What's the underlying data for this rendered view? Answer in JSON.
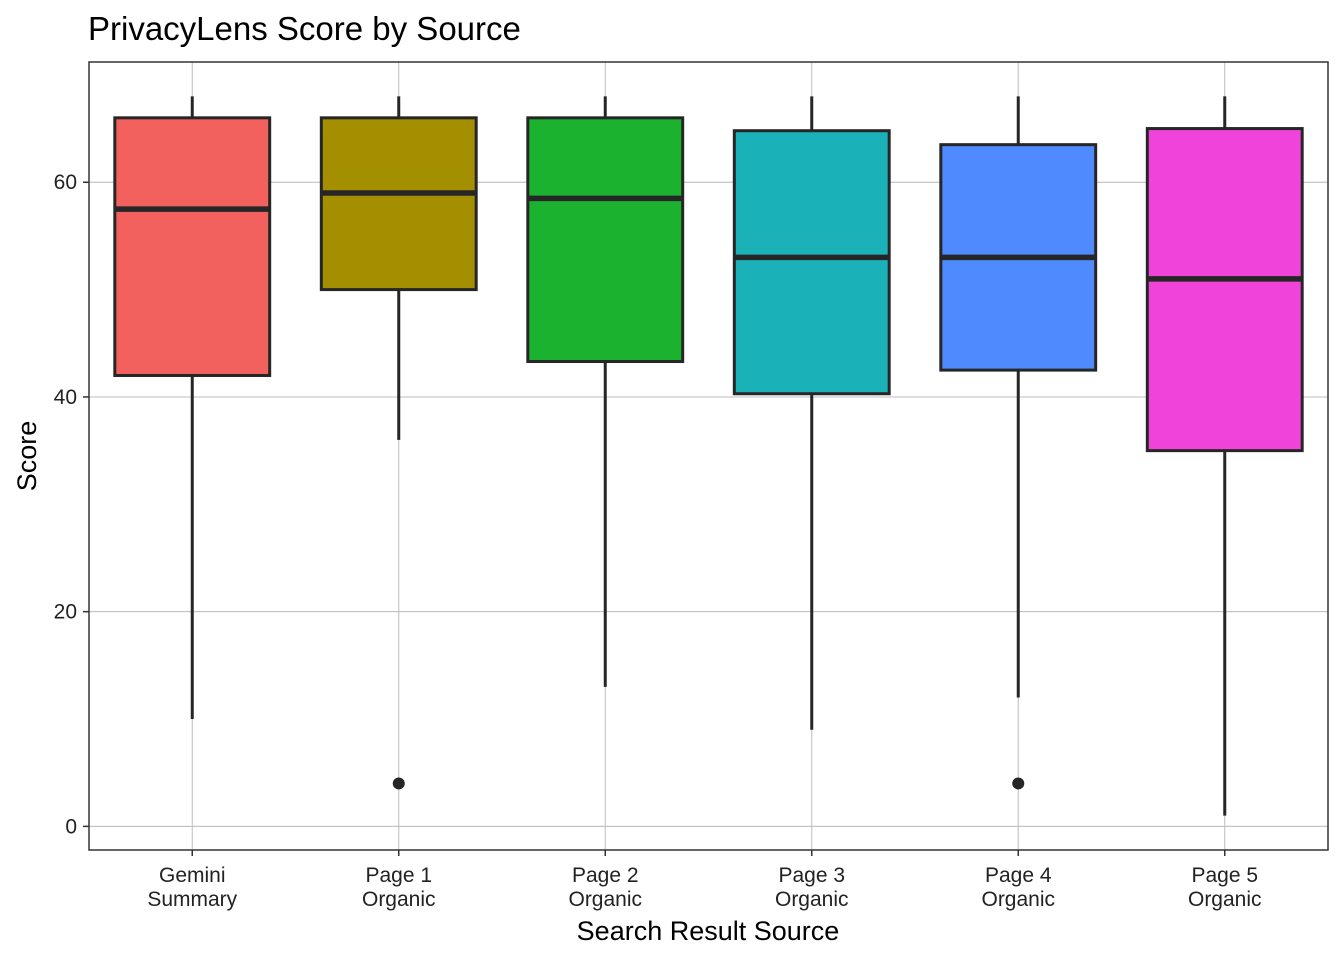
{
  "chart_data": {
    "type": "boxplot",
    "title": "PrivacyLens Score by Source",
    "xlabel": "Search Result Source",
    "ylabel": "Score",
    "ylim": [
      -2.2,
      71.2
    ],
    "yticks": [
      0,
      20,
      40,
      60
    ],
    "grid": true,
    "legend": "none",
    "categories": [
      [
        "Gemini",
        "Summary"
      ],
      [
        "Page 1",
        "Organic"
      ],
      [
        "Page 2",
        "Organic"
      ],
      [
        "Page 3",
        "Organic"
      ],
      [
        "Page 4",
        "Organic"
      ],
      [
        "Page 5",
        "Organic"
      ]
    ],
    "boxes": [
      {
        "whisker_low": 10,
        "q1": 42,
        "median": 57.5,
        "q3": 66,
        "whisker_high": 68,
        "outliers": [],
        "color": "#F3615F"
      },
      {
        "whisker_low": 36,
        "q1": 50,
        "median": 59,
        "q3": 66,
        "whisker_high": 68,
        "outliers": [
          4
        ],
        "color": "#A48F00"
      },
      {
        "whisker_low": 13,
        "q1": 43.3,
        "median": 58.5,
        "q3": 66,
        "whisker_high": 68,
        "outliers": [],
        "color": "#1AB22F"
      },
      {
        "whisker_low": 9,
        "q1": 40.3,
        "median": 53,
        "q3": 64.8,
        "whisker_high": 68,
        "outliers": [],
        "color": "#1AB2B8"
      },
      {
        "whisker_low": 12,
        "q1": 42.5,
        "median": 53,
        "q3": 63.5,
        "whisker_high": 68,
        "outliers": [
          4
        ],
        "color": "#4F8AFF"
      },
      {
        "whisker_low": 1,
        "q1": 35,
        "median": 51,
        "q3": 65,
        "whisker_high": 68,
        "outliers": [],
        "color": "#EF43DA"
      }
    ]
  }
}
